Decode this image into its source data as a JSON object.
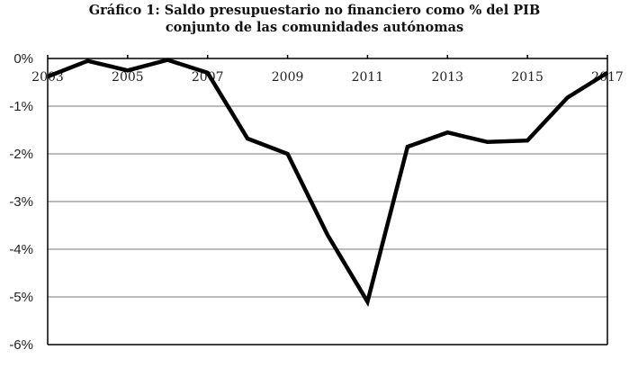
{
  "title": {
    "line1": "Gráfico 1: Saldo presupuestario no financiero como % del PIB",
    "line2": "conjunto de las comunidades autónomas"
  },
  "chart_data": {
    "type": "line",
    "title": "Gráfico 1: Saldo presupuestario no financiero como % del PIB conjunto de las comunidades autónomas",
    "xlabel": "",
    "ylabel": "",
    "x": [
      2003,
      2004,
      2005,
      2006,
      2007,
      2008,
      2009,
      2010,
      2011,
      2012,
      2013,
      2014,
      2015,
      2016,
      2017
    ],
    "series": [
      {
        "name": "Saldo presupuestario no financiero (% PIB)",
        "values": [
          -0.38,
          -0.05,
          -0.25,
          -0.03,
          -0.3,
          -1.68,
          -2.0,
          -3.7,
          -5.1,
          -1.85,
          -1.55,
          -1.75,
          -1.72,
          -0.82,
          -0.3
        ],
        "color": "#000000"
      }
    ],
    "x_tick_labels": [
      "2003",
      "2005",
      "2007",
      "2009",
      "2011",
      "2013",
      "2015",
      "2017"
    ],
    "y_tick_labels": [
      "0%",
      "-1%",
      "-2%",
      "-3%",
      "-4%",
      "-5%",
      "-6%"
    ],
    "ylim": [
      -6,
      0
    ],
    "xlim": [
      2003,
      2017
    ],
    "grid": true,
    "legend": "none",
    "x_axis_position": "top (at 0%)"
  }
}
